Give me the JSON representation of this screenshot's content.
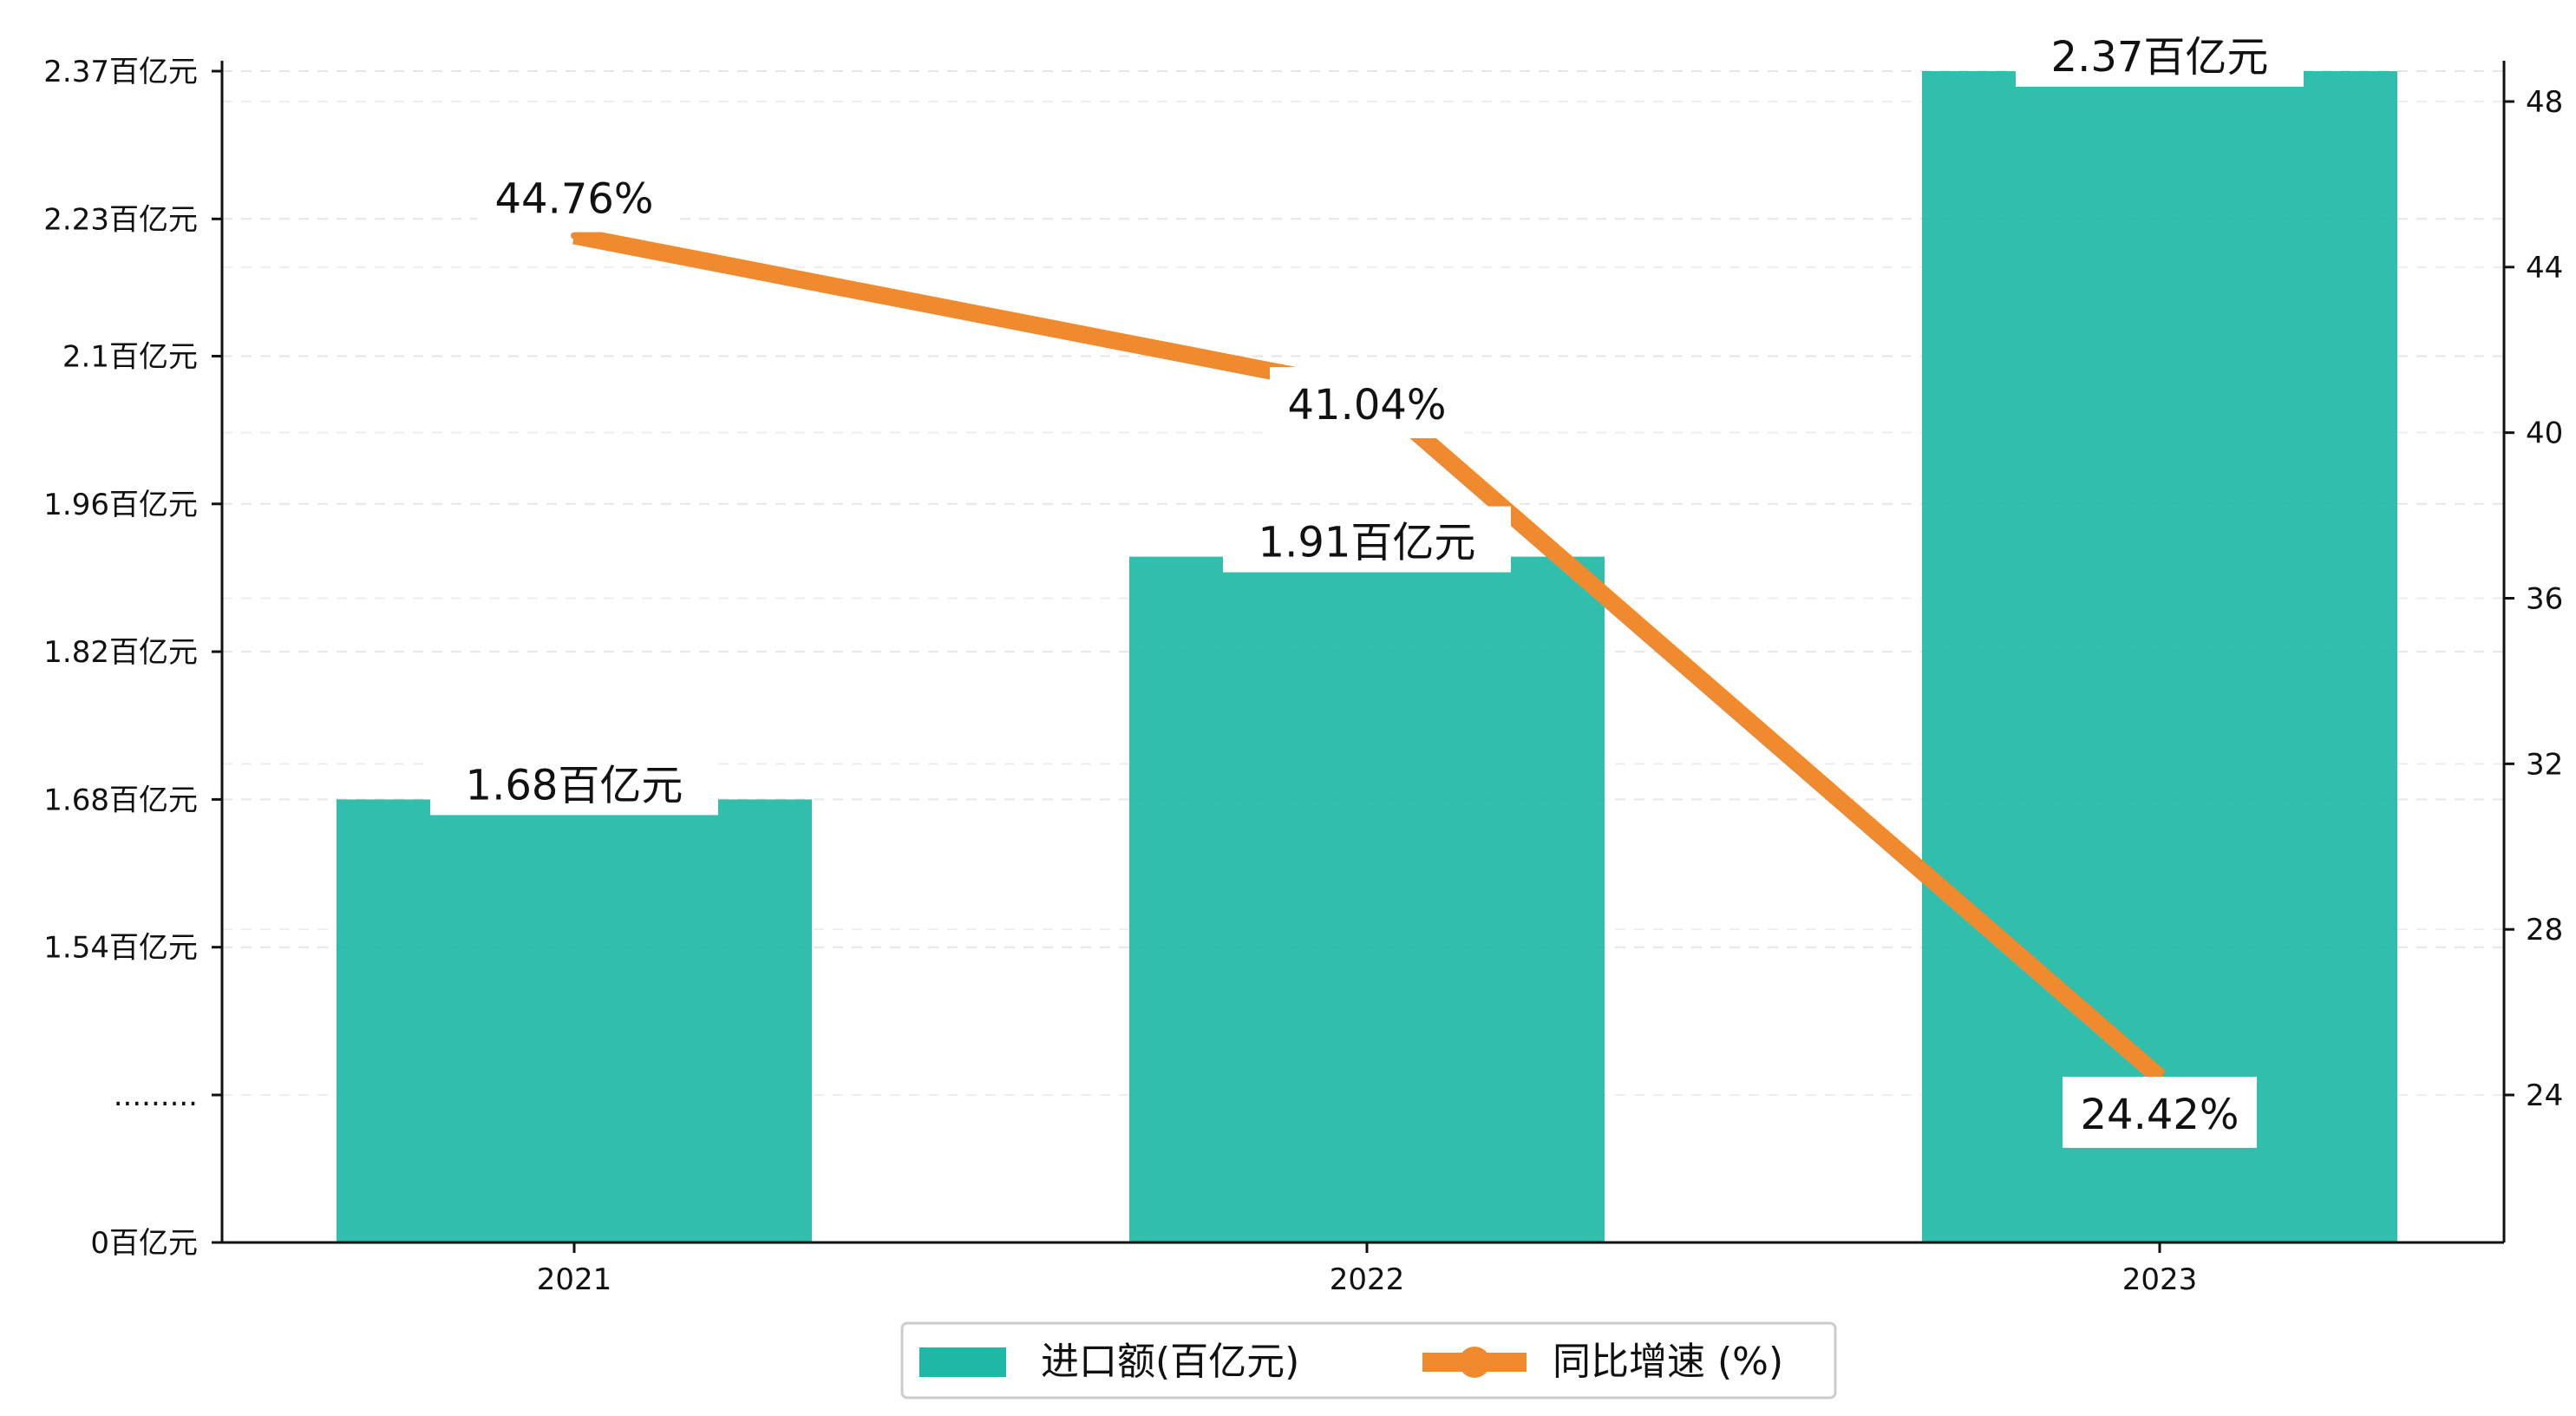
{
  "chart_data": {
    "type": "bar",
    "categories": [
      "2021",
      "2022",
      "2023"
    ],
    "series": [
      {
        "name": "进口额(百亿元)",
        "type": "bar",
        "axis": "left",
        "values": [
          1.68,
          1.91,
          2.37
        ],
        "labels": [
          "1.68百亿元",
          "1.91百亿元",
          "2.37百亿元"
        ],
        "color": "#1fb8a6"
      },
      {
        "name": "同比增速 (%)",
        "type": "line",
        "axis": "right",
        "values": [
          44.76,
          41.04,
          24.42
        ],
        "labels": [
          "44.76%",
          "41.04%",
          "24.42%"
        ],
        "color": "#f08a2e"
      }
    ],
    "y_left": {
      "ticks": [
        {
          "value": 0,
          "label": "0百亿元"
        },
        {
          "value": 1.4,
          "label": "........."
        },
        {
          "value": 1.54,
          "label": "1.54百亿元"
        },
        {
          "value": 1.68,
          "label": "1.68百亿元"
        },
        {
          "value": 1.82,
          "label": "1.82百亿元"
        },
        {
          "value": 1.96,
          "label": "1.96百亿元"
        },
        {
          "value": 2.1,
          "label": "2.1百亿元"
        },
        {
          "value": 2.23,
          "label": "2.23百亿元"
        },
        {
          "value": 2.37,
          "label": "2.37百亿元"
        }
      ],
      "broken_axis": true
    },
    "y_right": {
      "ticks": [
        24,
        28,
        32,
        36,
        40,
        44,
        48
      ],
      "ylim": [
        20.4,
        48.8
      ]
    },
    "grid": "horizontal-dashed",
    "legend_position": "bottom-center"
  }
}
